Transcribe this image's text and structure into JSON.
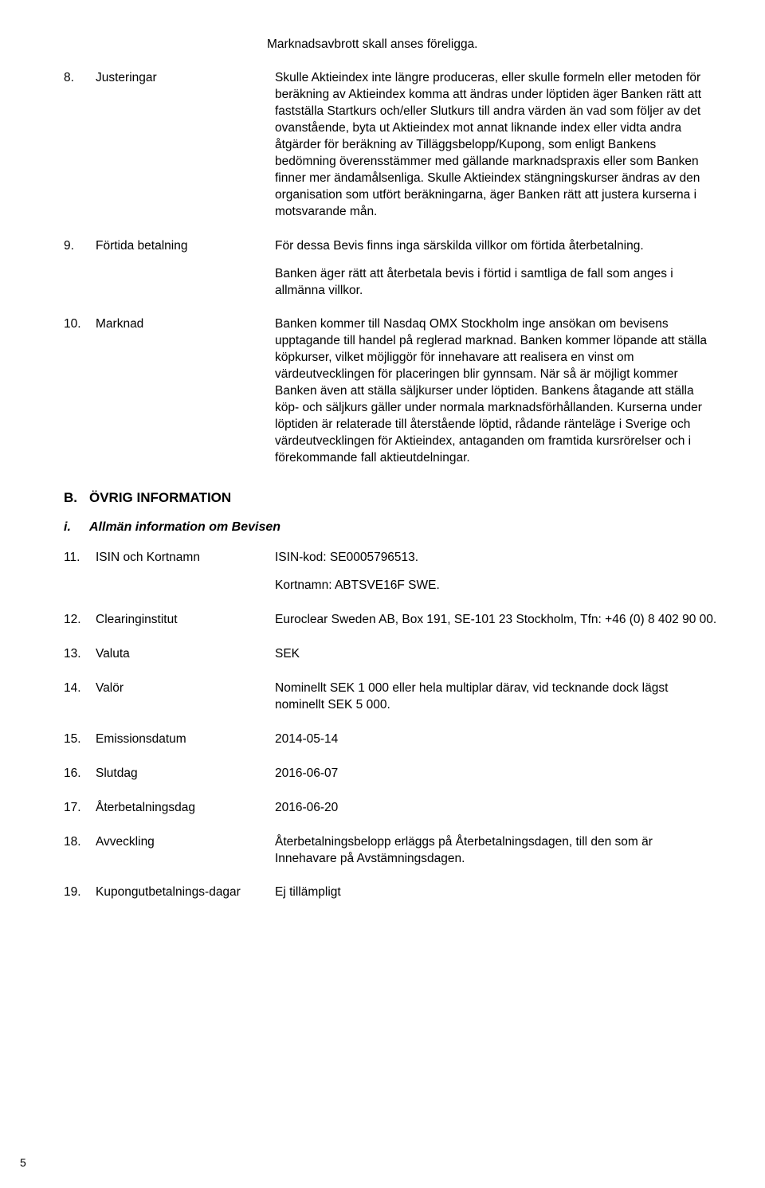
{
  "lead_para": "Marknadsavbrott skall anses föreligga.",
  "items": [
    {
      "num": "8.",
      "label": "Justeringar",
      "paras": [
        "Skulle Aktieindex inte längre produceras, eller skulle formeln eller metoden för beräkning av Aktieindex komma att ändras under löptiden äger Banken rätt att fastställa Startkurs och/eller Slutkurs till andra värden än vad som följer av det ovanstående, byta ut Aktieindex mot annat liknande index eller vidta andra åtgärder för beräkning av Tilläggsbelopp/Kupong, som enligt Bankens bedömning överensstämmer med gällande marknadspraxis eller som Banken finner mer ändamålsenliga. Skulle Aktieindex stängningskurser ändras av den organisation som utfört beräkningarna, äger Banken rätt att justera kurserna i motsvarande mån."
      ]
    },
    {
      "num": "9.",
      "label": "Förtida betalning",
      "paras": [
        "För dessa Bevis finns inga särskilda villkor om förtida återbetalning.",
        "Banken äger rätt att återbetala bevis i förtid i samtliga de fall som anges i allmänna villkor."
      ]
    },
    {
      "num": "10.",
      "label": "Marknad",
      "paras": [
        "Banken kommer till Nasdaq OMX Stockholm inge ansökan om bevisens upptagande till handel på reglerad marknad. Banken kommer löpande att ställa köpkurser, vilket möjliggör för innehavare att realisera en vinst om värdeutvecklingen för placeringen blir gynnsam. När så är möjligt kommer Banken även att ställa säljkurser under löptiden. Bankens åtagande att ställa köp- och säljkurs gäller under normala marknadsförhållanden. Kurserna under löptiden är relaterade till återstående löptid, rådande ränteläge i Sverige och värdeutvecklingen för Aktieindex, antaganden om framtida kursrörelser och i förekommande fall aktieutdelningar."
      ]
    }
  ],
  "section_B": {
    "letter": "B.",
    "title": "ÖVRIG INFORMATION"
  },
  "subsection_i": {
    "letter": "i.",
    "title": "Allmän information om Bevisen"
  },
  "items_B": [
    {
      "num": "11.",
      "label": "ISIN och Kortnamn",
      "paras": [
        "ISIN-kod: SE0005796513.",
        "Kortnamn: ABTSVE16F SWE."
      ]
    },
    {
      "num": "12.",
      "label": "Clearinginstitut",
      "paras": [
        "Euroclear Sweden AB, Box 191, SE-101 23 Stockholm, Tfn: +46 (0) 8 402 90 00."
      ]
    },
    {
      "num": "13.",
      "label": "Valuta",
      "paras": [
        "SEK"
      ]
    },
    {
      "num": "14.",
      "label": "Valör",
      "paras": [
        "Nominellt SEK 1 000 eller hela multiplar därav, vid tecknande dock lägst nominellt SEK 5 000."
      ]
    },
    {
      "num": "15.",
      "label": "Emissionsdatum",
      "paras": [
        "2014-05-14"
      ]
    },
    {
      "num": "16.",
      "label": "Slutdag",
      "paras": [
        "2016-06-07"
      ]
    },
    {
      "num": "17.",
      "label": "Återbetalningsdag",
      "paras": [
        "2016-06-20"
      ]
    },
    {
      "num": "18.",
      "label": "Avveckling",
      "paras": [
        "Återbetalningsbelopp erläggs på Återbetalningsdagen, till den som är Innehavare på Avstämningsdagen."
      ]
    },
    {
      "num": "19.",
      "label": "Kupongutbetalnings-dagar",
      "paras": [
        "Ej tillämpligt"
      ]
    }
  ],
  "page_number": "5"
}
